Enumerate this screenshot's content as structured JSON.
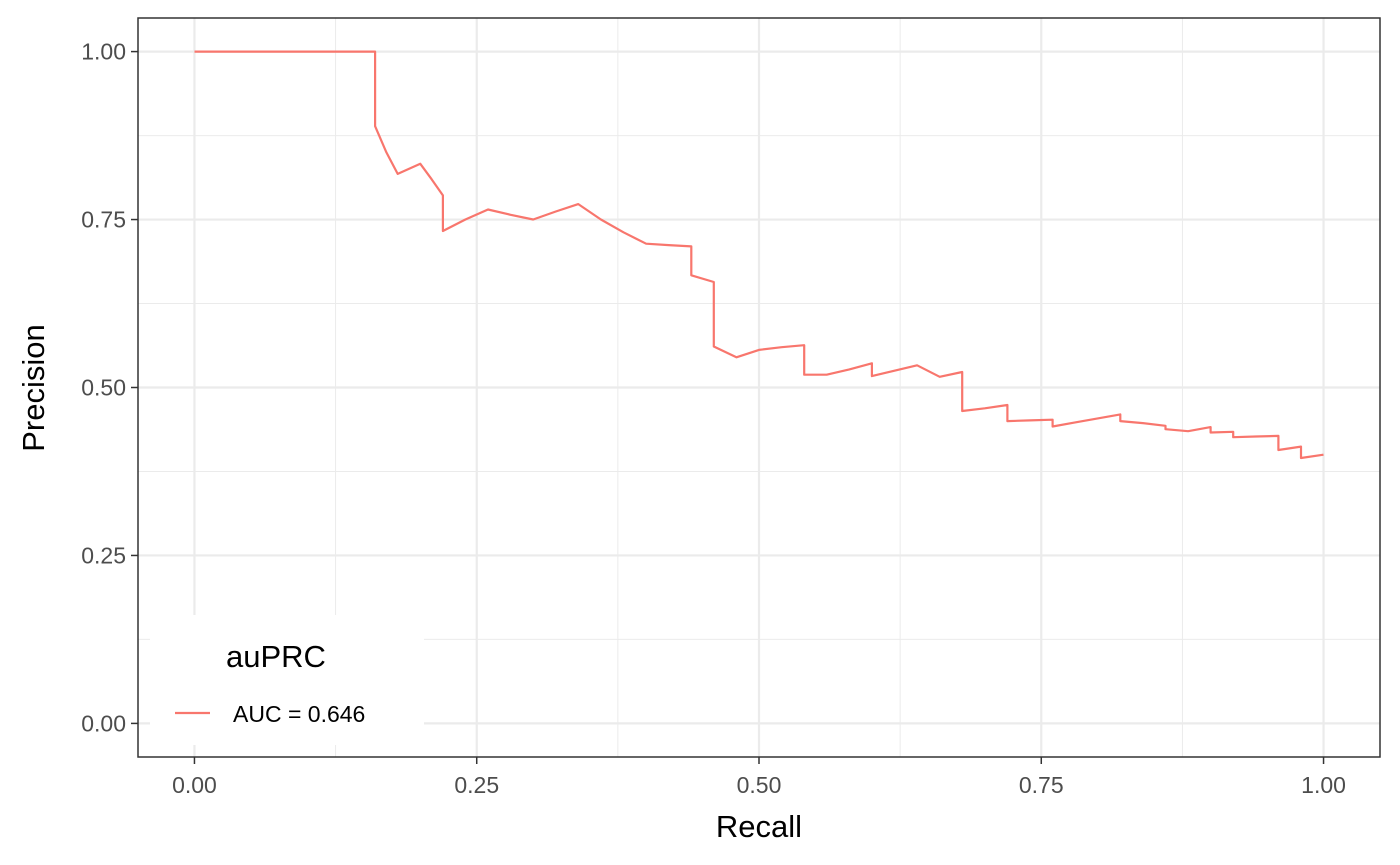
{
  "chart_data": {
    "type": "line",
    "xlabel": "Recall",
    "ylabel": "Precision",
    "xlim": [
      -0.05,
      1.05
    ],
    "ylim": [
      -0.05,
      1.05
    ],
    "x_ticks": [
      0.0,
      0.25,
      0.5,
      0.75,
      1.0
    ],
    "y_ticks": [
      0.0,
      0.25,
      0.5,
      0.75,
      1.0
    ],
    "x_tick_labels": [
      "0.00",
      "0.25",
      "0.50",
      "0.75",
      "1.00"
    ],
    "y_tick_labels": [
      "0.00",
      "0.25",
      "0.50",
      "0.75",
      "1.00"
    ],
    "grid": true,
    "legend": {
      "title": "auPRC",
      "position": "bottom-left",
      "entries": [
        "AUC = 0.646"
      ]
    },
    "series": [
      {
        "name": "AUC = 0.646",
        "color": "#F8766D",
        "x": [
          0.0,
          0.16,
          0.16,
          0.17,
          0.18,
          0.2,
          0.21,
          0.22,
          0.22,
          0.24,
          0.26,
          0.28,
          0.3,
          0.32,
          0.34,
          0.36,
          0.38,
          0.4,
          0.42,
          0.44,
          0.44,
          0.46,
          0.46,
          0.48,
          0.5,
          0.52,
          0.54,
          0.54,
          0.56,
          0.58,
          0.6,
          0.6,
          0.62,
          0.64,
          0.66,
          0.68,
          0.68,
          0.7,
          0.72,
          0.72,
          0.74,
          0.76,
          0.76,
          0.78,
          0.8,
          0.82,
          0.82,
          0.84,
          0.86,
          0.86,
          0.88,
          0.9,
          0.9,
          0.92,
          0.92,
          0.94,
          0.96,
          0.96,
          0.98,
          0.98,
          1.0
        ],
        "y": [
          1.0,
          1.0,
          0.889,
          0.85,
          0.818,
          0.833,
          0.81,
          0.786,
          0.733,
          0.75,
          0.765,
          0.757,
          0.75,
          0.762,
          0.773,
          0.75,
          0.731,
          0.714,
          0.712,
          0.71,
          0.667,
          0.657,
          0.561,
          0.545,
          0.556,
          0.56,
          0.563,
          0.519,
          0.519,
          0.527,
          0.536,
          0.517,
          0.525,
          0.533,
          0.516,
          0.523,
          0.465,
          0.469,
          0.474,
          0.45,
          0.451,
          0.452,
          0.442,
          0.448,
          0.454,
          0.46,
          0.45,
          0.447,
          0.443,
          0.438,
          0.435,
          0.441,
          0.433,
          0.434,
          0.426,
          0.427,
          0.428,
          0.407,
          0.412,
          0.395,
          0.4
        ]
      }
    ]
  }
}
